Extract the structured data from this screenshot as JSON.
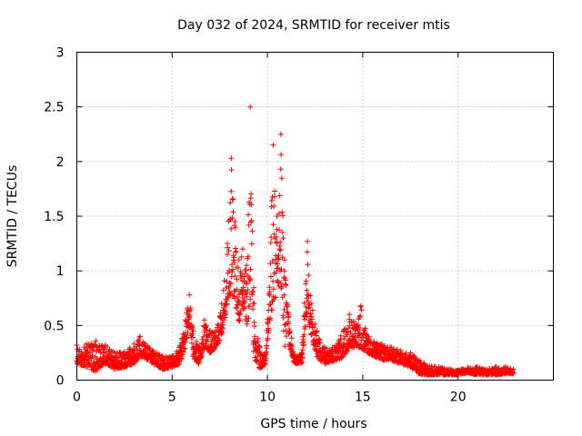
{
  "chart_data": {
    "type": "scatter",
    "title": "Day 032 of 2024, SRMTID for receiver mtis",
    "xlabel": "GPS time / hours",
    "ylabel": "SRMTID / TECUs",
    "xlim": [
      0,
      25
    ],
    "ylim": [
      0,
      3
    ],
    "xticks": [
      0,
      5,
      10,
      15,
      20
    ],
    "yticks": [
      0,
      0.5,
      1,
      1.5,
      2,
      2.5,
      3
    ],
    "ytick_labels": [
      "0",
      "0.5",
      "1",
      "1.5",
      "2",
      "2.5",
      "3"
    ],
    "grid": true,
    "marker": "+",
    "color": "#ff0000",
    "envelope": [
      [
        0.0,
        0.15,
        0.32
      ],
      [
        0.5,
        0.12,
        0.33
      ],
      [
        1.0,
        0.08,
        0.36
      ],
      [
        1.5,
        0.15,
        0.32
      ],
      [
        2.0,
        0.1,
        0.25
      ],
      [
        2.5,
        0.12,
        0.26
      ],
      [
        3.0,
        0.15,
        0.33
      ],
      [
        3.3,
        0.22,
        0.4
      ],
      [
        3.6,
        0.2,
        0.33
      ],
      [
        4.0,
        0.15,
        0.27
      ],
      [
        4.5,
        0.1,
        0.22
      ],
      [
        5.0,
        0.12,
        0.22
      ],
      [
        5.4,
        0.15,
        0.3
      ],
      [
        5.7,
        0.3,
        0.55
      ],
      [
        5.9,
        0.5,
        0.78
      ],
      [
        6.1,
        0.2,
        0.45
      ],
      [
        6.4,
        0.15,
        0.3
      ],
      [
        6.7,
        0.3,
        0.55
      ],
      [
        7.0,
        0.25,
        0.45
      ],
      [
        7.3,
        0.3,
        0.45
      ],
      [
        7.6,
        0.4,
        0.7
      ],
      [
        7.9,
        0.7,
        1.25
      ],
      [
        8.1,
        0.8,
        2.03
      ],
      [
        8.3,
        0.7,
        1.45
      ],
      [
        8.5,
        0.5,
        1.1
      ],
      [
        8.7,
        0.7,
        1.2
      ],
      [
        8.9,
        0.5,
        1.05
      ],
      [
        9.1,
        0.6,
        2.5
      ],
      [
        9.3,
        0.2,
        0.7
      ],
      [
        9.6,
        0.1,
        0.3
      ],
      [
        9.9,
        0.15,
        0.25
      ],
      [
        10.1,
        0.5,
        0.85
      ],
      [
        10.3,
        0.7,
        2.15
      ],
      [
        10.5,
        0.8,
        1.5
      ],
      [
        10.7,
        0.9,
        2.25
      ],
      [
        10.9,
        0.3,
        1.1
      ],
      [
        11.1,
        0.35,
        0.6
      ],
      [
        11.4,
        0.15,
        0.22
      ],
      [
        11.8,
        0.15,
        0.25
      ],
      [
        12.1,
        0.6,
        1.27
      ],
      [
        12.3,
        0.4,
        0.7
      ],
      [
        12.6,
        0.2,
        0.45
      ],
      [
        13.0,
        0.15,
        0.3
      ],
      [
        13.5,
        0.18,
        0.3
      ],
      [
        14.0,
        0.2,
        0.45
      ],
      [
        14.3,
        0.3,
        0.6
      ],
      [
        14.7,
        0.3,
        0.5
      ],
      [
        14.9,
        0.3,
        0.68
      ],
      [
        15.2,
        0.25,
        0.42
      ],
      [
        15.6,
        0.22,
        0.35
      ],
      [
        16.0,
        0.18,
        0.33
      ],
      [
        16.5,
        0.18,
        0.3
      ],
      [
        17.0,
        0.15,
        0.27
      ],
      [
        17.5,
        0.12,
        0.25
      ],
      [
        18.0,
        0.05,
        0.18
      ],
      [
        18.5,
        0.05,
        0.13
      ],
      [
        19.0,
        0.05,
        0.12
      ],
      [
        19.5,
        0.05,
        0.1
      ],
      [
        20.0,
        0.05,
        0.09
      ],
      [
        20.5,
        0.07,
        0.11
      ],
      [
        21.0,
        0.05,
        0.12
      ],
      [
        21.5,
        0.05,
        0.1
      ],
      [
        22.0,
        0.05,
        0.12
      ],
      [
        22.5,
        0.06,
        0.12
      ],
      [
        22.9,
        0.06,
        0.1
      ]
    ],
    "x_start": 0.0,
    "x_end": 22.9
  }
}
